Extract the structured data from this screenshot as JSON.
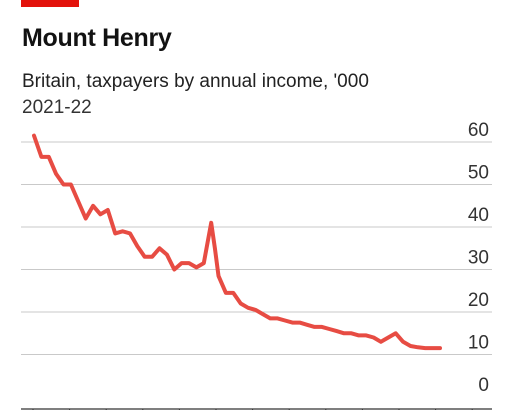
{
  "header": {
    "title": "Mount Henry",
    "subtitle": "Britain, taxpayers by annual income, '000",
    "period": "2021-22"
  },
  "colors": {
    "accent": "#e3120b",
    "line": "#e74c43",
    "grid": "#c9c9c9",
    "axis": "#333333"
  },
  "chart_data": {
    "type": "line",
    "title": "Mount Henry",
    "subtitle": "Britain, taxpayers by annual income, '000",
    "xlabel": "",
    "ylabel": "",
    "ylim": [
      0,
      60
    ],
    "yticks": [
      0,
      10,
      20,
      30,
      40,
      50,
      60
    ],
    "ytick_labels": [
      "0",
      "10",
      "20",
      "30",
      "40",
      "50",
      "60"
    ],
    "y_axis_position": "right",
    "grid": true,
    "legend": "none",
    "series": [
      {
        "name": "",
        "points": [
          [
            0,
            61.5
          ],
          [
            2,
            56.5
          ],
          [
            4,
            56.5
          ],
          [
            6,
            52.5
          ],
          [
            8,
            50
          ],
          [
            10,
            50
          ],
          [
            12,
            46
          ],
          [
            14,
            42
          ],
          [
            16,
            45
          ],
          [
            18,
            43
          ],
          [
            20,
            44
          ],
          [
            22,
            38.5
          ],
          [
            24,
            39
          ],
          [
            26,
            38.5
          ],
          [
            28,
            35.5
          ],
          [
            30,
            33
          ],
          [
            32,
            33
          ],
          [
            34,
            35
          ],
          [
            36,
            33.5
          ],
          [
            38,
            30
          ],
          [
            40,
            31.5
          ],
          [
            42,
            31.5
          ],
          [
            44,
            30.5
          ],
          [
            46,
            31.5
          ],
          [
            48,
            41
          ],
          [
            49,
            35
          ],
          [
            50,
            28.5
          ],
          [
            52,
            24.5
          ],
          [
            54,
            24.5
          ],
          [
            56,
            22
          ],
          [
            58,
            21
          ],
          [
            60,
            20.5
          ],
          [
            62,
            19.5
          ],
          [
            64,
            18.5
          ],
          [
            66,
            18.5
          ],
          [
            68,
            18
          ],
          [
            70,
            17.5
          ],
          [
            72,
            17.5
          ],
          [
            74,
            17
          ],
          [
            76,
            16.5
          ],
          [
            78,
            16.5
          ],
          [
            80,
            16
          ],
          [
            82,
            15.5
          ],
          [
            84,
            15
          ],
          [
            86,
            15
          ],
          [
            88,
            14.5
          ],
          [
            90,
            14.5
          ],
          [
            92,
            14
          ],
          [
            94,
            13
          ],
          [
            96,
            14
          ],
          [
            98,
            15
          ],
          [
            100,
            13
          ],
          [
            102,
            12
          ],
          [
            104,
            11.7
          ],
          [
            106,
            11.5
          ],
          [
            108,
            11.5
          ],
          [
            110,
            11.5
          ]
        ]
      }
    ]
  }
}
